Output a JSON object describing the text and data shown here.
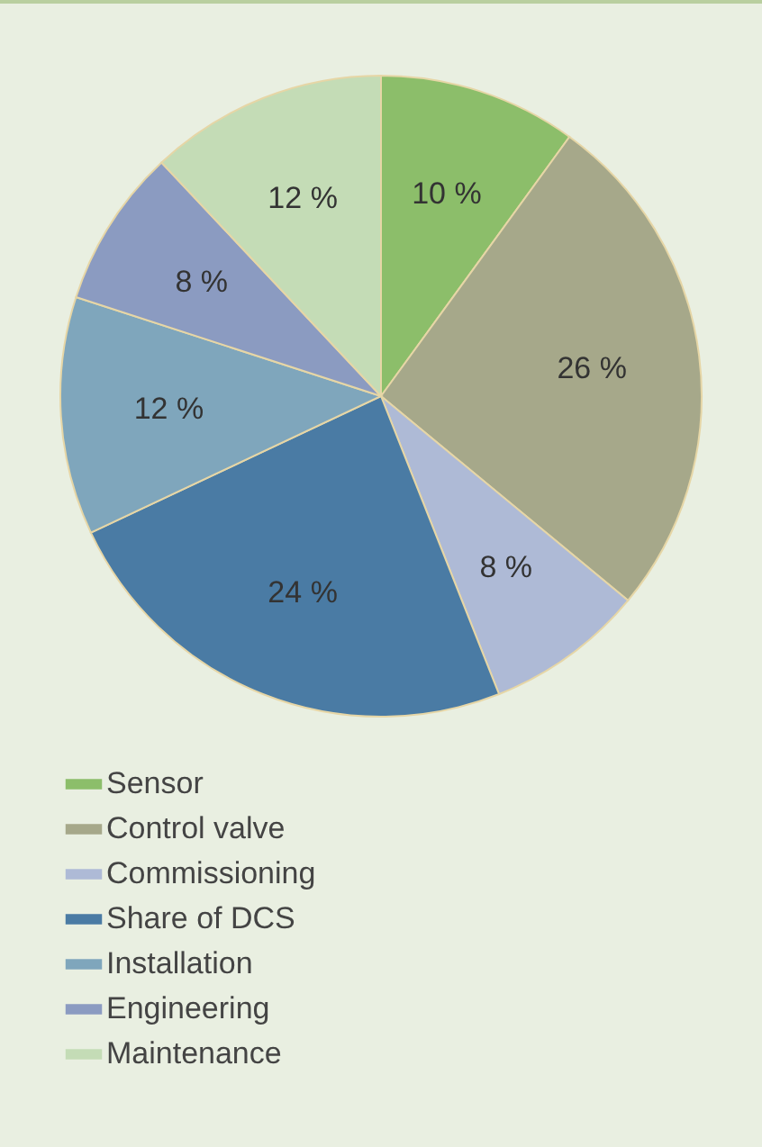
{
  "chart_data": {
    "type": "pie",
    "categories": [
      "Sensor",
      "Control valve",
      "Commissioning",
      "Share of DCS",
      "Installation",
      "Engineering",
      "Maintenance"
    ],
    "values": [
      10,
      26,
      8,
      24,
      12,
      8,
      12
    ],
    "colors": [
      "#8cbe6a",
      "#a6a88a",
      "#aebad6",
      "#4a7ba4",
      "#7fa6bc",
      "#8b9bc1",
      "#c4dcb6"
    ],
    "value_labels": [
      "10 %",
      "26 %",
      "8 %",
      "24 %",
      "12 %",
      "8 %",
      "12 %"
    ],
    "legend": "bottom"
  }
}
